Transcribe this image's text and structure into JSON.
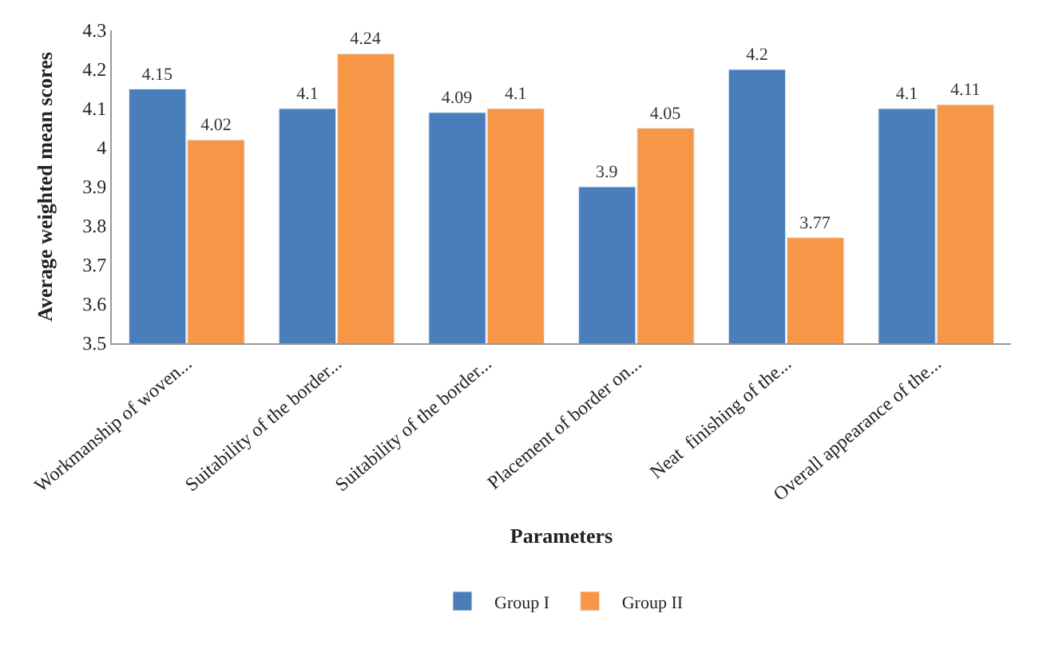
{
  "chart_data": {
    "type": "bar",
    "xlabel": "Parameters",
    "ylabel": "Average weighted mean scores",
    "categories": [
      "Workmanship of woven...",
      "Suitability of the border...",
      "Suitability of the border...",
      "Placement of border on...",
      "Neat  finishing of the...",
      "Overall appearance of the..."
    ],
    "series": [
      {
        "name": "Group I",
        "color": "#4a7ebb",
        "values": [
          4.15,
          4.1,
          4.09,
          3.9,
          4.2,
          4.1
        ]
      },
      {
        "name": "Group II",
        "color": "#f79646",
        "values": [
          4.02,
          4.24,
          4.1,
          4.05,
          3.77,
          4.11
        ]
      }
    ],
    "ylim": [
      3.5,
      4.3
    ],
    "yticks": [
      3.5,
      3.6,
      3.7,
      3.8,
      3.9,
      4,
      4.1,
      4.2,
      4.3
    ],
    "data_labels": true,
    "legend": "bottom"
  }
}
